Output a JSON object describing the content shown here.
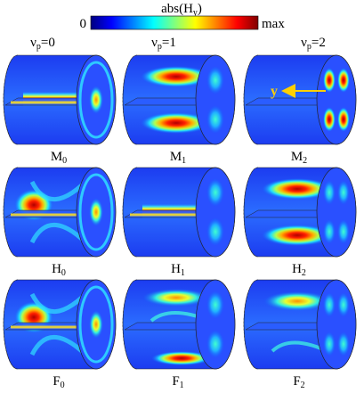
{
  "colorbar": {
    "title_main": "abs(H",
    "title_sub": "y",
    "title_close": ")",
    "min_label": "0",
    "max_label": "max",
    "colormap": [
      "#00007f",
      "#0000ff",
      "#007fff",
      "#00ffff",
      "#7fff7f",
      "#ffff00",
      "#ff7f00",
      "#ff0000",
      "#7f0000"
    ]
  },
  "columns": [
    {
      "prefix": "ν",
      "sub": "p",
      "suffix": "=0"
    },
    {
      "prefix": "ν",
      "sub": "p",
      "suffix": "=1"
    },
    {
      "prefix": "ν",
      "sub": "p",
      "suffix": "=2"
    }
  ],
  "panels": [
    {
      "letter": "M",
      "index": "0",
      "band": "center",
      "face": "rings"
    },
    {
      "letter": "M",
      "index": "1",
      "band": "double",
      "face": "lobes-v2"
    },
    {
      "letter": "M",
      "index": "2",
      "band": "none",
      "face": "lobes-4"
    },
    {
      "letter": "H",
      "index": "0",
      "band": "corner",
      "face": "rings"
    },
    {
      "letter": "H",
      "index": "1",
      "band": "center",
      "face": "lobes-v2"
    },
    {
      "letter": "H",
      "index": "2",
      "band": "double",
      "face": "lobes-4"
    },
    {
      "letter": "F",
      "index": "0",
      "band": "corner",
      "face": "rings"
    },
    {
      "letter": "F",
      "index": "1",
      "band": "bottom",
      "face": "lobes-v2"
    },
    {
      "letter": "F",
      "index": "2",
      "band": "arcs",
      "face": "lobes-4"
    }
  ],
  "axis_marker": {
    "label": "y"
  }
}
